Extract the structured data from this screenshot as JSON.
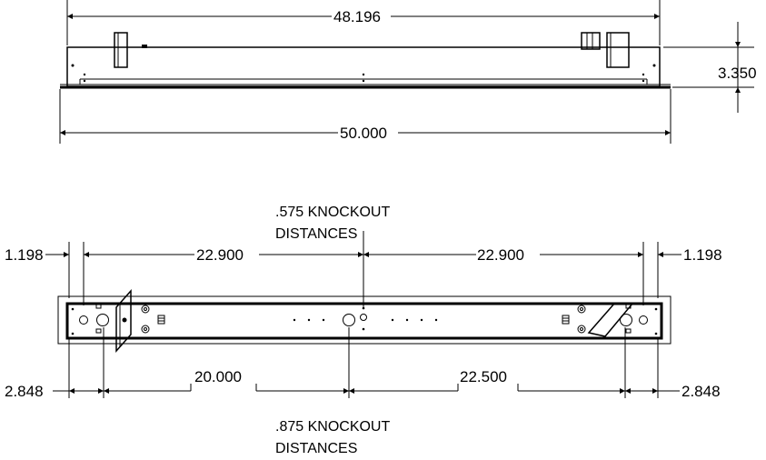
{
  "top_view": {
    "dim_top_width": "48.196",
    "dim_overall_width": "50.000",
    "dim_height": "3.350"
  },
  "bottom_view": {
    "note_575_line1": ".575 KNOCKOUT",
    "note_575_line2": "DISTANCES",
    "note_875_line1": ".875 KNOCKOUT",
    "note_875_line2": "DISTANCES",
    "dim_left_edge_575": "1.198",
    "dim_right_edge_575": "1.198",
    "dim_left_span_575": "22.900",
    "dim_right_span_575": "22.900",
    "dim_left_edge_875": "2.848",
    "dim_right_edge_875": "2.848",
    "dim_left_span_875": "20.000",
    "dim_right_span_875": "22.500"
  }
}
